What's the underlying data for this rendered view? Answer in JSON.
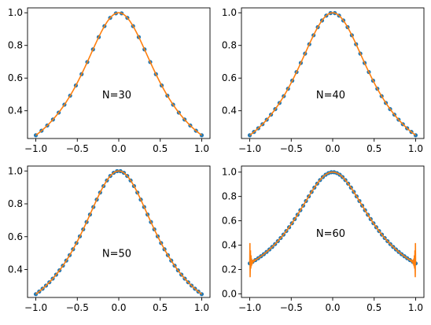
{
  "chart_data": [
    {
      "type": "line",
      "annotation": "N=30",
      "xlim": [
        -1.1,
        1.1
      ],
      "ylim": [
        0.23,
        1.03
      ],
      "xticks": [
        -1.0,
        -0.5,
        0.0,
        0.5,
        1.0
      ],
      "xtick_labels": [
        "−1.0",
        "−0.5",
        "0.0",
        "0.5",
        "1.0"
      ],
      "yticks": [
        0.4,
        0.6,
        0.8,
        1.0
      ],
      "ytick_labels": [
        "0.4",
        "0.6",
        "0.8",
        "1.0"
      ],
      "function": "1/(1+3x^2)",
      "sample_points": 30,
      "edge_oscillation": 0,
      "series": [
        {
          "kind": "points",
          "color": "#1f77b4"
        },
        {
          "kind": "line",
          "color": "#ff7f0e"
        }
      ]
    },
    {
      "type": "line",
      "annotation": "N=40",
      "xlim": [
        -1.1,
        1.1
      ],
      "ylim": [
        0.23,
        1.03
      ],
      "xticks": [
        -1.0,
        -0.5,
        0.0,
        0.5,
        1.0
      ],
      "xtick_labels": [
        "−1.0",
        "−0.5",
        "0.0",
        "0.5",
        "1.0"
      ],
      "yticks": [
        0.4,
        0.6,
        0.8,
        1.0
      ],
      "ytick_labels": [
        "0.4",
        "0.6",
        "0.8",
        "1.0"
      ],
      "function": "1/(1+3x^2)",
      "sample_points": 40,
      "edge_oscillation": 0,
      "series": [
        {
          "kind": "points",
          "color": "#1f77b4"
        },
        {
          "kind": "line",
          "color": "#ff7f0e"
        }
      ]
    },
    {
      "type": "line",
      "annotation": "N=50",
      "xlim": [
        -1.1,
        1.1
      ],
      "ylim": [
        0.23,
        1.03
      ],
      "xticks": [
        -1.0,
        -0.5,
        0.0,
        0.5,
        1.0
      ],
      "xtick_labels": [
        "−1.0",
        "−0.5",
        "0.0",
        "0.5",
        "1.0"
      ],
      "yticks": [
        0.4,
        0.6,
        0.8,
        1.0
      ],
      "ytick_labels": [
        "0.4",
        "0.6",
        "0.8",
        "1.0"
      ],
      "function": "1/(1+3x^2)",
      "sample_points": 50,
      "edge_oscillation": 0,
      "series": [
        {
          "kind": "points",
          "color": "#1f77b4"
        },
        {
          "kind": "line",
          "color": "#ff7f0e"
        }
      ]
    },
    {
      "type": "line",
      "annotation": "N=60",
      "xlim": [
        -1.1,
        1.1
      ],
      "ylim": [
        -0.03,
        1.05
      ],
      "xticks": [
        -1.0,
        -0.5,
        0.0,
        0.5,
        1.0
      ],
      "xtick_labels": [
        "−1.0",
        "−0.5",
        "0.0",
        "0.5",
        "1.0"
      ],
      "yticks": [
        0.0,
        0.2,
        0.4,
        0.6,
        0.8,
        1.0
      ],
      "ytick_labels": [
        "0.0",
        "0.2",
        "0.4",
        "0.6",
        "0.8",
        "1.0"
      ],
      "function": "1/(1+3x^2)",
      "sample_points": 60,
      "edge_oscillation": 0.22,
      "series": [
        {
          "kind": "points",
          "color": "#1f77b4"
        },
        {
          "kind": "line",
          "color": "#ff7f0e"
        }
      ]
    }
  ]
}
